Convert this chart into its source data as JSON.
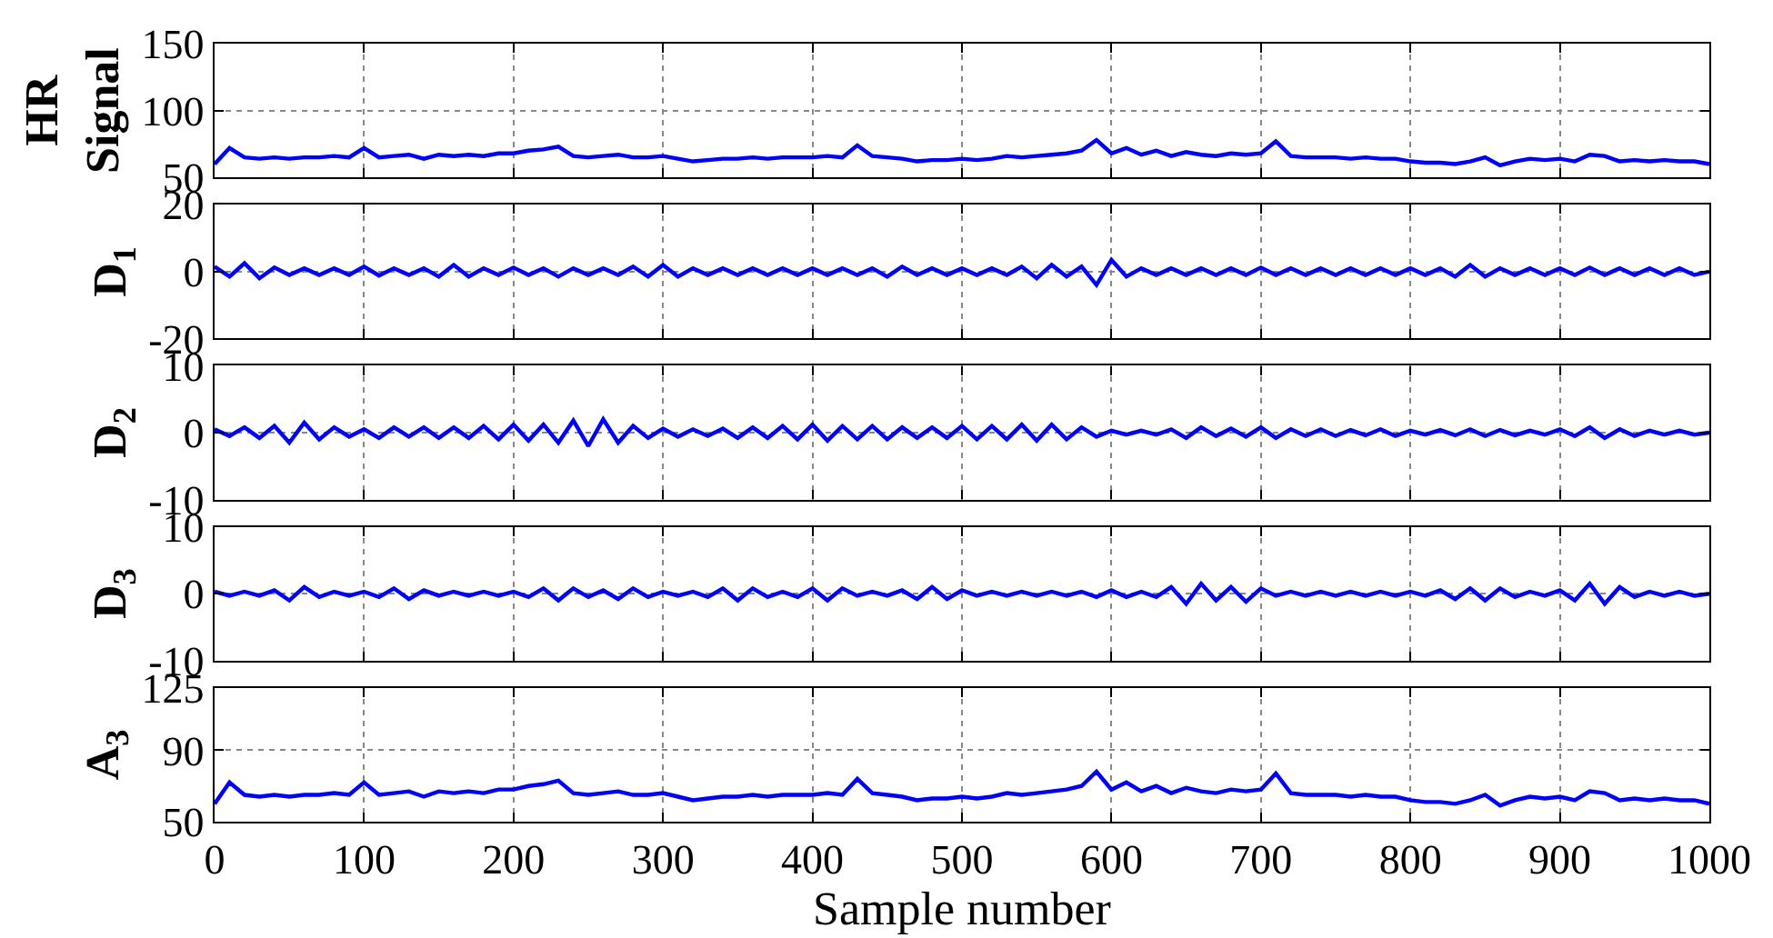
{
  "chart_data": [
    {
      "type": "line",
      "ylabel": "HR Signal",
      "xlim": [
        0,
        1000
      ],
      "xticks": [
        0,
        100,
        200,
        300,
        400,
        500,
        600,
        700,
        800,
        900,
        1000
      ],
      "ylim": [
        50,
        150
      ],
      "yticks": [
        50,
        100,
        150
      ],
      "grid": true,
      "tick_labels": "y",
      "x": [
        0,
        10,
        20,
        30,
        40,
        50,
        60,
        70,
        80,
        90,
        100,
        110,
        120,
        130,
        140,
        150,
        160,
        170,
        180,
        190,
        200,
        210,
        220,
        230,
        240,
        250,
        260,
        270,
        280,
        290,
        300,
        310,
        320,
        330,
        340,
        350,
        360,
        370,
        380,
        390,
        400,
        410,
        420,
        430,
        440,
        450,
        460,
        470,
        480,
        490,
        500,
        510,
        520,
        530,
        540,
        550,
        560,
        570,
        580,
        590,
        600,
        610,
        620,
        630,
        640,
        650,
        660,
        670,
        680,
        690,
        700,
        710,
        720,
        730,
        740,
        750,
        760,
        770,
        780,
        790,
        800,
        810,
        820,
        830,
        840,
        850,
        860,
        870,
        880,
        890,
        900,
        910,
        920,
        930,
        940,
        950,
        960,
        970,
        980,
        990,
        1000
      ],
      "series": [
        {
          "color": "#0000ff",
          "values": [
            60,
            72,
            65,
            64,
            65,
            64,
            65,
            65,
            66,
            65,
            72,
            65,
            66,
            67,
            64,
            67,
            66,
            67,
            66,
            68,
            68,
            70,
            71,
            73,
            66,
            65,
            66,
            67,
            65,
            65,
            66,
            64,
            62,
            63,
            64,
            64,
            65,
            64,
            65,
            65,
            65,
            66,
            65,
            74,
            66,
            65,
            64,
            62,
            63,
            63,
            64,
            63,
            64,
            66,
            65,
            66,
            67,
            68,
            70,
            78,
            68,
            72,
            67,
            70,
            66,
            69,
            67,
            66,
            68,
            67,
            68,
            77,
            66,
            65,
            65,
            65,
            64,
            65,
            64,
            64,
            62,
            61,
            61,
            60,
            62,
            65,
            59,
            62,
            64,
            63,
            64,
            62,
            67,
            66,
            62,
            63,
            62,
            63,
            62,
            62,
            60
          ]
        }
      ]
    },
    {
      "type": "line",
      "ylabel": "D$_{1}$",
      "xlim": [
        0,
        1000
      ],
      "xticks": [
        0,
        100,
        200,
        300,
        400,
        500,
        600,
        700,
        800,
        900,
        1000
      ],
      "ylim": [
        -20,
        20
      ],
      "yticks": [
        -20,
        0,
        20
      ],
      "grid": true,
      "tick_labels": "y",
      "x": [
        0,
        10,
        20,
        30,
        40,
        50,
        60,
        70,
        80,
        90,
        100,
        110,
        120,
        130,
        140,
        150,
        160,
        170,
        180,
        190,
        200,
        210,
        220,
        230,
        240,
        250,
        260,
        270,
        280,
        290,
        300,
        310,
        320,
        330,
        340,
        350,
        360,
        370,
        380,
        390,
        400,
        410,
        420,
        430,
        440,
        450,
        460,
        470,
        480,
        490,
        500,
        510,
        520,
        530,
        540,
        550,
        560,
        570,
        580,
        590,
        600,
        610,
        620,
        630,
        640,
        650,
        660,
        670,
        680,
        690,
        700,
        710,
        720,
        730,
        740,
        750,
        760,
        770,
        780,
        790,
        800,
        810,
        820,
        830,
        840,
        850,
        860,
        870,
        880,
        890,
        900,
        910,
        920,
        930,
        940,
        950,
        960,
        970,
        980,
        990,
        1000
      ],
      "series": [
        {
          "color": "#0000ff",
          "values": [
            1.5,
            -1.5,
            2.5,
            -2,
            1.2,
            -1,
            1,
            -1,
            1,
            -1,
            1.5,
            -1.2,
            1,
            -1,
            1,
            -1.5,
            2,
            -1.5,
            1,
            -1,
            1.2,
            -1,
            1,
            -1.5,
            1,
            -1,
            1,
            -1,
            1.5,
            -1.5,
            2,
            -1.5,
            1,
            -1,
            1,
            -1,
            1,
            -1,
            1,
            -1,
            1,
            -1,
            1,
            -1,
            1,
            -1.5,
            1.5,
            -1,
            1,
            -1,
            1,
            -1,
            1,
            -1,
            1.5,
            -2,
            2,
            -1.5,
            1.5,
            -4,
            3.5,
            -1.5,
            1,
            -1,
            1,
            -1,
            1,
            -1,
            1,
            -1,
            1.2,
            -1,
            1,
            -1,
            1,
            -1,
            1,
            -1,
            1,
            -1,
            1,
            -1,
            1,
            -1.5,
            2,
            -1.5,
            1,
            -1,
            1,
            -1,
            1,
            -1,
            1.2,
            -1,
            1,
            -1,
            1,
            -1,
            1,
            -1,
            0
          ]
        }
      ]
    },
    {
      "type": "line",
      "ylabel": "D$_{2}$",
      "xlim": [
        0,
        1000
      ],
      "xticks": [
        0,
        100,
        200,
        300,
        400,
        500,
        600,
        700,
        800,
        900,
        1000
      ],
      "ylim": [
        -10,
        10
      ],
      "yticks": [
        -10,
        0,
        10
      ],
      "grid": true,
      "tick_labels": "y",
      "x": [
        0,
        10,
        20,
        30,
        40,
        50,
        60,
        70,
        80,
        90,
        100,
        110,
        120,
        130,
        140,
        150,
        160,
        170,
        180,
        190,
        200,
        210,
        220,
        230,
        240,
        250,
        260,
        270,
        280,
        290,
        300,
        310,
        320,
        330,
        340,
        350,
        360,
        370,
        380,
        390,
        400,
        410,
        420,
        430,
        440,
        450,
        460,
        470,
        480,
        490,
        500,
        510,
        520,
        530,
        540,
        550,
        560,
        570,
        580,
        590,
        600,
        610,
        620,
        630,
        640,
        650,
        660,
        670,
        680,
        690,
        700,
        710,
        720,
        730,
        740,
        750,
        760,
        770,
        780,
        790,
        800,
        810,
        820,
        830,
        840,
        850,
        860,
        870,
        880,
        890,
        900,
        910,
        920,
        930,
        940,
        950,
        960,
        970,
        980,
        990,
        1000
      ],
      "series": [
        {
          "color": "#0000ff",
          "values": [
            0.5,
            -0.5,
            0.8,
            -0.8,
            1,
            -1.5,
            1.5,
            -1,
            0.8,
            -0.6,
            0.5,
            -0.8,
            0.8,
            -0.6,
            0.8,
            -0.8,
            0.8,
            -0.8,
            1,
            -1,
            1.2,
            -1.2,
            1.2,
            -1.5,
            1.8,
            -2,
            2,
            -1.5,
            1,
            -0.8,
            0.6,
            -0.6,
            0.5,
            -0.5,
            0.6,
            -0.8,
            0.8,
            -0.8,
            1,
            -1,
            1.2,
            -1.2,
            1,
            -1,
            1,
            -1,
            0.8,
            -0.8,
            0.8,
            -0.8,
            1,
            -1,
            1,
            -1,
            1.2,
            -1.2,
            1.2,
            -1,
            0.8,
            -0.6,
            0.3,
            -0.3,
            0.3,
            -0.3,
            0.5,
            -0.8,
            0.8,
            -0.5,
            0.6,
            -0.6,
            0.8,
            -0.8,
            0.5,
            -0.5,
            0.5,
            -0.5,
            0.4,
            -0.4,
            0.5,
            -0.5,
            0.3,
            -0.3,
            0.4,
            -0.4,
            0.5,
            -0.5,
            0.4,
            -0.4,
            0.3,
            -0.3,
            0.5,
            -0.5,
            0.8,
            -0.8,
            0.5,
            -0.5,
            0.3,
            -0.3,
            0.3,
            -0.3,
            0
          ]
        }
      ]
    },
    {
      "type": "line",
      "ylabel": "D$_{3}$",
      "xlim": [
        0,
        1000
      ],
      "xticks": [
        0,
        100,
        200,
        300,
        400,
        500,
        600,
        700,
        800,
        900,
        1000
      ],
      "ylim": [
        -10,
        10
      ],
      "yticks": [
        -10,
        0,
        10
      ],
      "grid": true,
      "tick_labels": "y",
      "x": [
        0,
        10,
        20,
        30,
        40,
        50,
        60,
        70,
        80,
        90,
        100,
        110,
        120,
        130,
        140,
        150,
        160,
        170,
        180,
        190,
        200,
        210,
        220,
        230,
        240,
        250,
        260,
        270,
        280,
        290,
        300,
        310,
        320,
        330,
        340,
        350,
        360,
        370,
        380,
        390,
        400,
        410,
        420,
        430,
        440,
        450,
        460,
        470,
        480,
        490,
        500,
        510,
        520,
        530,
        540,
        550,
        560,
        570,
        580,
        590,
        600,
        610,
        620,
        630,
        640,
        650,
        660,
        670,
        680,
        690,
        700,
        710,
        720,
        730,
        740,
        750,
        760,
        770,
        780,
        790,
        800,
        810,
        820,
        830,
        840,
        850,
        860,
        870,
        880,
        890,
        900,
        910,
        920,
        930,
        940,
        950,
        960,
        970,
        980,
        990,
        1000
      ],
      "series": [
        {
          "color": "#0000ff",
          "values": [
            0.3,
            -0.3,
            0.3,
            -0.3,
            0.5,
            -1,
            1,
            -0.5,
            0.3,
            -0.3,
            0.3,
            -0.5,
            0.8,
            -0.8,
            0.5,
            -0.3,
            0.3,
            -0.3,
            0.3,
            -0.3,
            0.3,
            -0.5,
            0.8,
            -1,
            0.8,
            -0.5,
            0.5,
            -0.8,
            0.8,
            -0.5,
            0.3,
            -0.3,
            0.3,
            -0.5,
            0.8,
            -1,
            0.8,
            -0.5,
            0.3,
            -0.5,
            0.8,
            -1,
            0.8,
            -0.3,
            0.3,
            -0.3,
            0.5,
            -0.8,
            1,
            -0.8,
            0.5,
            -0.3,
            0.3,
            -0.3,
            0.3,
            -0.3,
            0.3,
            -0.3,
            0.3,
            -0.5,
            0.5,
            -0.5,
            0.3,
            -0.5,
            1,
            -1.5,
            1.5,
            -1,
            1,
            -1.2,
            0.8,
            -0.3,
            0.3,
            -0.3,
            0.3,
            -0.3,
            0.3,
            -0.3,
            0.3,
            -0.3,
            0.3,
            -0.3,
            0.5,
            -0.8,
            0.8,
            -1,
            0.8,
            -0.5,
            0.3,
            -0.3,
            0.5,
            -1,
            1.5,
            -1.5,
            1,
            -0.5,
            0.3,
            -0.3,
            0.3,
            -0.3,
            0
          ]
        }
      ]
    },
    {
      "type": "line",
      "ylabel": "A$_{3}$",
      "xlabel": "Sample number",
      "xlim": [
        0,
        1000
      ],
      "xticks": [
        0,
        100,
        200,
        300,
        400,
        500,
        600,
        700,
        800,
        900,
        1000
      ],
      "ylim": [
        50,
        125
      ],
      "yticks": [
        50,
        90,
        125
      ],
      "grid": true,
      "x": [
        0,
        10,
        20,
        30,
        40,
        50,
        60,
        70,
        80,
        90,
        100,
        110,
        120,
        130,
        140,
        150,
        160,
        170,
        180,
        190,
        200,
        210,
        220,
        230,
        240,
        250,
        260,
        270,
        280,
        290,
        300,
        310,
        320,
        330,
        340,
        350,
        360,
        370,
        380,
        390,
        400,
        410,
        420,
        430,
        440,
        450,
        460,
        470,
        480,
        490,
        500,
        510,
        520,
        530,
        540,
        550,
        560,
        570,
        580,
        590,
        600,
        610,
        620,
        630,
        640,
        650,
        660,
        670,
        680,
        690,
        700,
        710,
        720,
        730,
        740,
        750,
        760,
        770,
        780,
        790,
        800,
        810,
        820,
        830,
        840,
        850,
        860,
        870,
        880,
        890,
        900,
        910,
        920,
        930,
        940,
        950,
        960,
        970,
        980,
        990,
        1000
      ],
      "series": [
        {
          "color": "#0000ff",
          "values": [
            60,
            72,
            65,
            64,
            65,
            64,
            65,
            65,
            66,
            65,
            72,
            65,
            66,
            67,
            64,
            67,
            66,
            67,
            66,
            68,
            68,
            70,
            71,
            73,
            66,
            65,
            66,
            67,
            65,
            65,
            66,
            64,
            62,
            63,
            64,
            64,
            65,
            64,
            65,
            65,
            65,
            66,
            65,
            74,
            66,
            65,
            64,
            62,
            63,
            63,
            64,
            63,
            64,
            66,
            65,
            66,
            67,
            68,
            70,
            78,
            68,
            72,
            67,
            70,
            66,
            69,
            67,
            66,
            68,
            67,
            68,
            77,
            66,
            65,
            65,
            65,
            64,
            65,
            64,
            64,
            62,
            61,
            61,
            60,
            62,
            65,
            59,
            62,
            64,
            63,
            64,
            62,
            67,
            66,
            62,
            63,
            62,
            63,
            62,
            62,
            60
          ]
        }
      ]
    }
  ]
}
